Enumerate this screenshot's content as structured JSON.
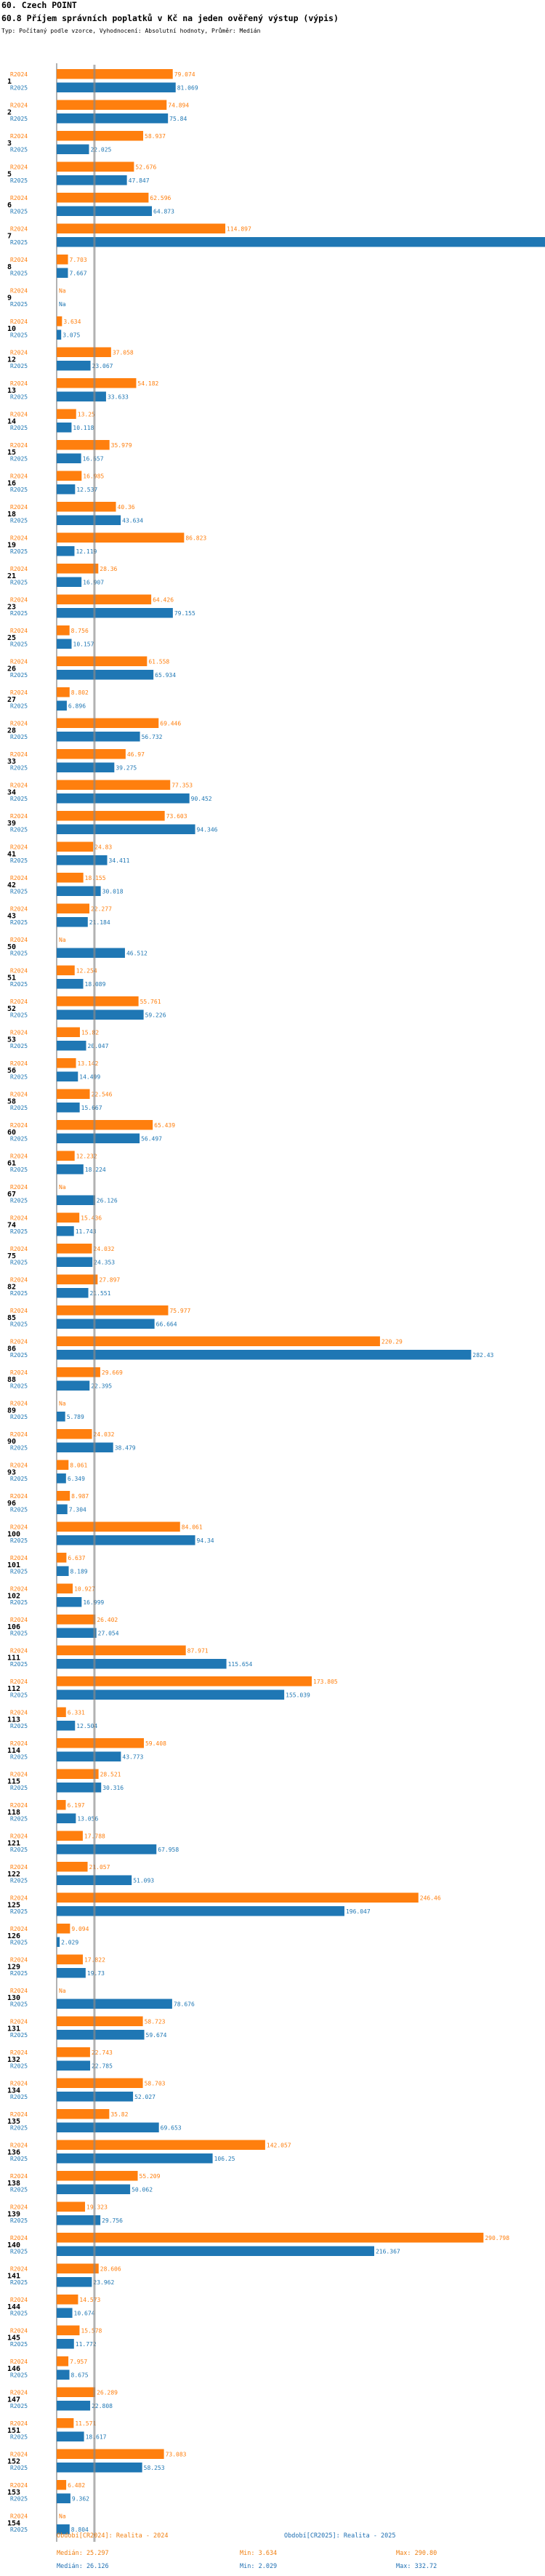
{
  "header": {
    "top": "60. Czech POINT",
    "title": "60.8 Příjem správních poplatků v Kč na jeden ověřený výstup (výpis)",
    "subtitle": "Typ: Počítaný podle vzorce, Vyhodnocení: Absolutní hodnoty, Průměr: Medián"
  },
  "colors": {
    "r2024": "#ff7f0e",
    "r2025": "#1f77b4",
    "median_line": "#8a8a8a"
  },
  "chart_data": {
    "type": "bar",
    "orientation": "horizontal",
    "xlim": [
      0,
      332.72
    ],
    "series_labels": [
      "R2024",
      "R2025"
    ],
    "categories": [
      "1",
      "2",
      "3",
      "5",
      "6",
      "7",
      "8",
      "9",
      "10",
      "12",
      "13",
      "14",
      "15",
      "16",
      "18",
      "19",
      "21",
      "23",
      "25",
      "26",
      "27",
      "28",
      "33",
      "34",
      "39",
      "41",
      "42",
      "43",
      "50",
      "51",
      "52",
      "53",
      "56",
      "58",
      "60",
      "61",
      "67",
      "74",
      "75",
      "82",
      "85",
      "86",
      "88",
      "89",
      "90",
      "93",
      "96",
      "100",
      "101",
      "102",
      "106",
      "111",
      "112",
      "113",
      "114",
      "115",
      "118",
      "121",
      "122",
      "125",
      "126",
      "129",
      "130",
      "131",
      "132",
      "134",
      "135",
      "136",
      "138",
      "139",
      "140",
      "141",
      "144",
      "145",
      "146",
      "147",
      "151",
      "152",
      "153",
      "154"
    ],
    "r2024": [
      79.074,
      74.894,
      58.937,
      52.676,
      62.596,
      114.897,
      7.703,
      null,
      3.634,
      37.058,
      54.182,
      13.25,
      35.979,
      16.985,
      40.36,
      86.823,
      28.36,
      64.426,
      8.756,
      61.558,
      8.802,
      69.446,
      46.97,
      77.353,
      73.603,
      24.83,
      18.155,
      22.277,
      null,
      12.254,
      55.761,
      15.82,
      13.142,
      22.546,
      65.439,
      12.232,
      null,
      15.436,
      24.032,
      27.897,
      75.977,
      220.29,
      29.669,
      null,
      24.032,
      8.061,
      8.987,
      84.061,
      6.637,
      10.927,
      26.402,
      87.971,
      173.805,
      6.331,
      59.408,
      28.521,
      6.197,
      17.788,
      21.057,
      246.46,
      9.094,
      17.822,
      null,
      58.723,
      22.743,
      58.703,
      35.82,
      142.057,
      55.209,
      19.323,
      290.798,
      28.606,
      14.573,
      15.578,
      7.957,
      26.289,
      11.571,
      73.083,
      6.482,
      null
    ],
    "r2025": [
      81.069,
      75.84,
      22.025,
      47.847,
      64.873,
      332.72,
      7.667,
      null,
      3.075,
      23.067,
      33.633,
      10.118,
      16.657,
      12.537,
      43.634,
      12.119,
      16.907,
      79.155,
      10.157,
      65.934,
      6.896,
      56.732,
      39.275,
      90.452,
      94.346,
      34.411,
      30.018,
      21.184,
      46.512,
      18.089,
      59.226,
      20.047,
      14.499,
      15.667,
      56.497,
      18.224,
      26.126,
      11.743,
      24.353,
      21.551,
      66.664,
      282.43,
      22.395,
      5.789,
      38.479,
      6.349,
      7.304,
      94.34,
      8.189,
      16.999,
      27.054,
      115.654,
      155.039,
      12.504,
      43.773,
      30.316,
      13.056,
      67.958,
      51.093,
      196.047,
      2.029,
      19.73,
      78.676,
      59.674,
      22.785,
      52.027,
      69.653,
      106.25,
      50.062,
      29.756,
      216.367,
      23.962,
      10.674,
      11.772,
      8.675,
      22.808,
      18.617,
      58.253,
      9.362,
      8.804
    ],
    "median_label": "Medián",
    "footer": {
      "r2024_label": "Období[CR2024]: Realita - 2024",
      "r2025_label": "Období[CR2025]: Realita - 2025",
      "r2024_stats": [
        "Medián: 25.297",
        "Min: 3.634",
        "Max: 290.80"
      ],
      "r2025_stats": [
        "Medián: 26.126",
        "Min: 2.029",
        "Max: 332.72"
      ]
    }
  }
}
